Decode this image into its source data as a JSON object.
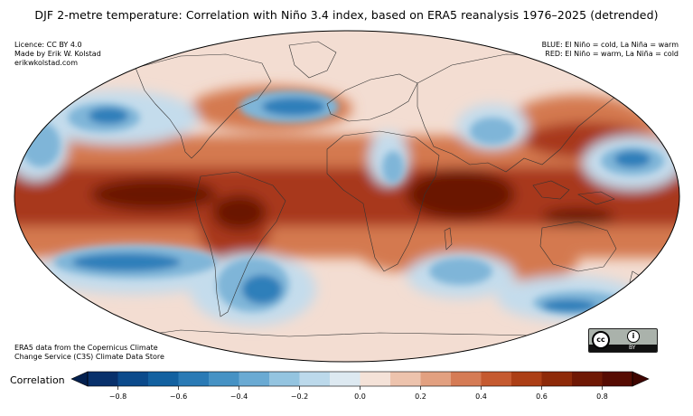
{
  "title": "DJF 2-metre temperature: Correlation with Niño 3.4 index, based on ERA5 reanalysis 1976–2025 (detrended)",
  "credits_top_left": [
    "Licence: CC BY 4.0",
    "Made by Erik W. Kolstad",
    "erikwkolstad.com"
  ],
  "legend_top_right": [
    "BLUE: El Niño = cold, La Niña = warm",
    "RED: El Niño = warm, La Niña = cold"
  ],
  "source_bottom_left": [
    "ERA5 data from the Copernicus Climate",
    "Change Service (C3S) Climate Data Store"
  ],
  "license_badge": {
    "icon": "cc-icon",
    "by_icon": "by-person-icon",
    "by_text": "BY"
  },
  "colorbar": {
    "label": "Correlation",
    "ticks": [
      "−0.8",
      "−0.6",
      "−0.4",
      "−0.2",
      "0.0",
      "0.2",
      "0.4",
      "0.6",
      "0.8"
    ],
    "tick_values": [
      -0.8,
      -0.6,
      -0.4,
      -0.2,
      0.0,
      0.2,
      0.4,
      0.6,
      0.8
    ],
    "range": [
      -0.9,
      0.9
    ],
    "extend": "both",
    "colors": [
      "#08306b",
      "#0b4a8b",
      "#1361a0",
      "#2a7ab5",
      "#4692c4",
      "#6aaad3",
      "#94c4e0",
      "#bcd9eb",
      "#dde9f1",
      "#f4e2d8",
      "#edc3ad",
      "#e2a080",
      "#d57b55",
      "#c55a30",
      "#ac3f16",
      "#8e2a09",
      "#6f1804",
      "#560b02"
    ],
    "under_color": "#03204f",
    "over_color": "#3f0500"
  },
  "map": {
    "projection": "Mollweide",
    "centre_longitude": 0,
    "colors": {
      "ocean_background": "#f3ddd2",
      "tropical_warm": "#a8381a",
      "tropical_core": "#6a1204",
      "moderate_warm": "#d4794f",
      "cold_strong": "#2e7fba",
      "cold_moderate": "#7fb5d8",
      "cold_weak": "#c4dcec",
      "coast_lines": "#333333"
    }
  }
}
